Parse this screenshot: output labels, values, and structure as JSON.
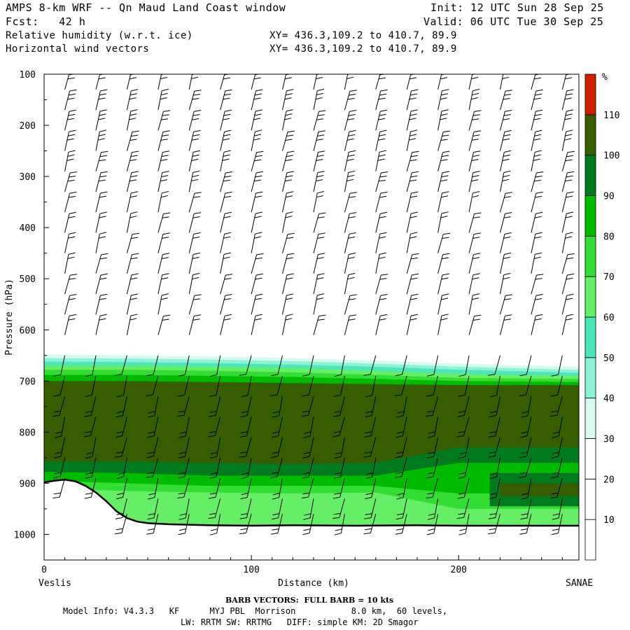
{
  "header": {
    "title": "AMPS 8-km WRF -- Qn Maud Land Coast window",
    "init": "Init: 12 UTC Sun 28 Sep 25",
    "fcst": "Fcst:   42 h",
    "valid": "Valid: 06 UTC Tue 30 Sep 25",
    "field1": "Relative humidity (w.r.t. ice)",
    "field2": "Horizontal wind vectors",
    "xy1": "XY= 436.3,109.2 to 410.7, 89.9",
    "xy2": "XY= 436.3,109.2 to 410.7, 89.9"
  },
  "footer": {
    "barb_note": "BARB VECTORS:  FULL BARB = 10 kts",
    "model_info": "Model Info: V4.3.3   KF      MYJ PBL  Morrison           8.0 km,  60 levels,",
    "physics": "LW: RRTM SW: RRTMG   DIFF: simple KM: 2D Smagor"
  },
  "chart_data": {
    "type": "heatmap",
    "xlabel": "Distance (km)",
    "ylabel": "Pressure (hPa)",
    "x_ticks": [
      0,
      100,
      200
    ],
    "y_ticks": [
      100,
      200,
      300,
      400,
      500,
      600,
      700,
      800,
      900,
      1000
    ],
    "xlim": [
      0,
      258
    ],
    "ylim": [
      1050,
      100
    ],
    "left_endpoint_label": "Veslis",
    "right_endpoint_label": "SANAE",
    "colorbar": {
      "unit": "%",
      "levels": [
        10,
        20,
        30,
        40,
        50,
        60,
        70,
        80,
        90,
        100,
        110
      ],
      "colors": [
        "#ffffff",
        "#ffffff",
        "#ffffff",
        "#d6faee",
        "#8ef2d6",
        "#4ce6bd",
        "#66ee66",
        "#33dd33",
        "#00bb00",
        "#007a1e",
        "#365e00",
        "#cc2200"
      ]
    },
    "rh_layers": [
      {
        "rh_min": 30,
        "color": "#d6faee",
        "top_hpa": [
          648,
          650,
          652,
          655,
          660,
          666,
          672
        ]
      },
      {
        "rh_min": 40,
        "color": "#8ef2d6",
        "top_hpa": [
          655,
          656,
          658,
          661,
          666,
          672,
          678
        ]
      },
      {
        "rh_min": 50,
        "color": "#4ce6bd",
        "top_hpa": [
          662,
          663,
          665,
          668,
          672,
          678,
          684
        ]
      },
      {
        "rh_min": 60,
        "color": "#66ee66",
        "top_hpa": [
          670,
          670,
          672,
          675,
          680,
          686,
          690
        ]
      },
      {
        "rh_min": 70,
        "color": "#33dd33",
        "top_hpa": [
          678,
          678,
          680,
          683,
          688,
          694,
          696
        ]
      },
      {
        "rh_min": 80,
        "color": "#00bb00",
        "top_hpa": [
          688,
          688,
          690,
          692,
          696,
          700,
          702
        ]
      },
      {
        "rh_min": 100,
        "color": "#365e00",
        "top_hpa": [
          700,
          700,
          702,
          704,
          706,
          708,
          708
        ]
      }
    ],
    "rh_layer_x_km": [
      0,
      40,
      80,
      120,
      160,
      200,
      258
    ],
    "lower_moist_band_top_hpa": [
      858,
      858,
      860,
      862,
      860,
      830,
      830
    ],
    "surface_pressure_hpa": {
      "x_km": [
        0,
        5,
        10,
        15,
        20,
        25,
        30,
        35,
        40,
        45,
        50,
        60,
        80,
        100,
        120,
        150,
        180,
        200,
        230,
        258
      ],
      "p": [
        898,
        895,
        893,
        896,
        905,
        918,
        935,
        955,
        968,
        975,
        978,
        980,
        982,
        983,
        982,
        983,
        982,
        983,
        983,
        983
      ]
    },
    "wind_barbs": {
      "columns_x_km": [
        10,
        25,
        40,
        55,
        70,
        85,
        100,
        115,
        130,
        145,
        160,
        175,
        190,
        205,
        220,
        235,
        250
      ],
      "levels_hpa": [
        130,
        170,
        210,
        250,
        290,
        330,
        370,
        410,
        450,
        490,
        530,
        570,
        610,
        650,
        690,
        730,
        770,
        810,
        850,
        890,
        930,
        960
      ],
      "units": "kts"
    }
  }
}
